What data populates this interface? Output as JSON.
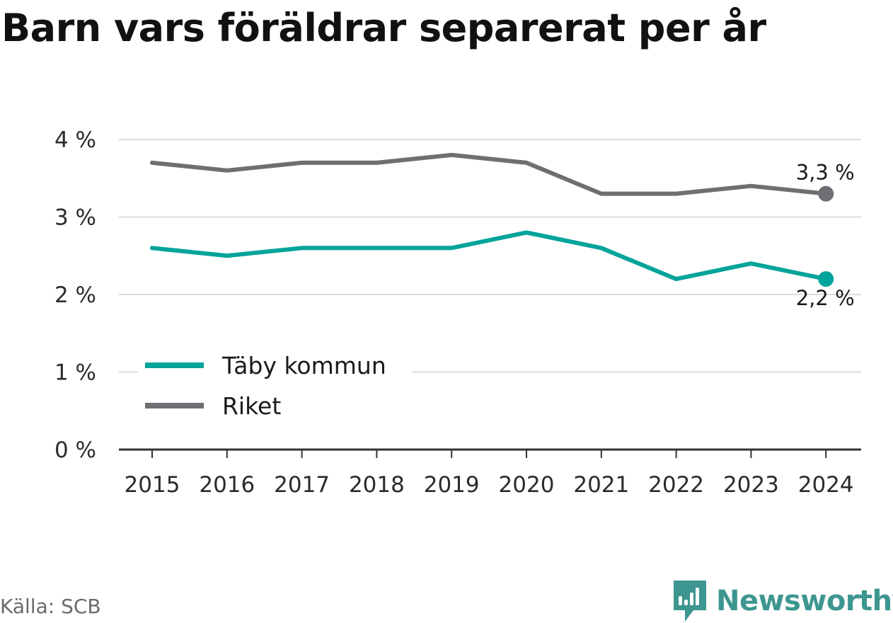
{
  "title": "Barn vars föräldrar separerat per år",
  "source": "Källa: SCB",
  "brand": "Newsworthy",
  "colors": {
    "taby": "#00a49a",
    "riket": "#6e6e73",
    "grid": "#dcdcdc",
    "axis": "#333333",
    "brand": "#3d9690"
  },
  "chart_data": {
    "type": "line",
    "x": [
      "2015",
      "2016",
      "2017",
      "2018",
      "2019",
      "2020",
      "2021",
      "2022",
      "2023",
      "2024"
    ],
    "ylim": [
      0,
      4
    ],
    "yticks": [
      0,
      1,
      2,
      3,
      4
    ],
    "ytick_labels": [
      "0 %",
      "1 %",
      "2 %",
      "3 %",
      "4 %"
    ],
    "grid": true,
    "legend": "bottom-left",
    "series": [
      {
        "name": "Täby kommun",
        "key": "taby",
        "values": [
          2.6,
          2.5,
          2.6,
          2.6,
          2.6,
          2.8,
          2.6,
          2.2,
          2.4,
          2.2
        ],
        "end_label": "2,2 %",
        "end_label_pos": "below"
      },
      {
        "name": "Riket",
        "key": "riket",
        "values": [
          3.7,
          3.6,
          3.7,
          3.7,
          3.8,
          3.7,
          3.3,
          3.3,
          3.4,
          3.3
        ],
        "end_label": "3,3 %",
        "end_label_pos": "above"
      }
    ]
  }
}
